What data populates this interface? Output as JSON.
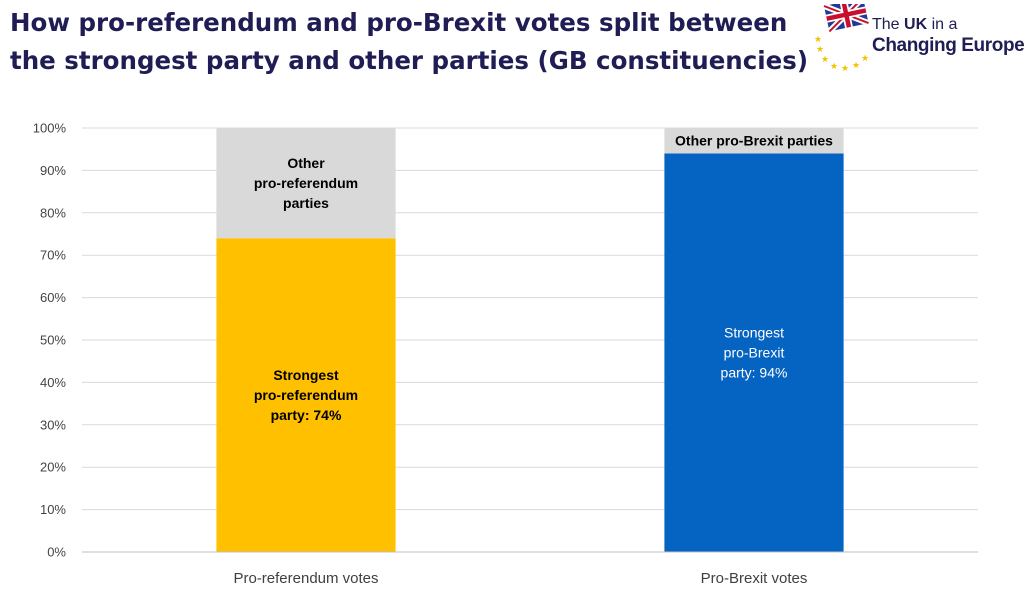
{
  "title_lines": [
    "How pro-referendum and pro-Brexit votes split between",
    "the strongest party and other parties (GB constituencies)"
  ],
  "logo": {
    "line1_prefix": "The ",
    "line1_bold": "UK",
    "line1_suffix": " in a",
    "line2": "Changing Europe",
    "icon": "union-jack-eu-stars-logo-icon"
  },
  "colors": {
    "title": "#1f1d54",
    "strongest_referendum": "#ffc000",
    "strongest_brexit": "#0563c1",
    "other_parties": "#d9d9d9",
    "gridline": "#d9d9d9"
  },
  "chart_data": {
    "type": "bar",
    "stacked": true,
    "categories": [
      "Pro-referendum votes",
      "Pro-Brexit votes"
    ],
    "series": [
      {
        "name": "Strongest party",
        "values": [
          74,
          94
        ]
      },
      {
        "name": "Other parties",
        "values": [
          26,
          6
        ]
      }
    ],
    "segment_labels": [
      [
        [
          "Strongest",
          "pro-referendum",
          "party: 74%"
        ],
        [
          "Other",
          "pro-referendum",
          "parties"
        ]
      ],
      [
        [
          "Strongest",
          "pro-Brexit",
          "party: 94%"
        ],
        [
          "Other pro-Brexit parties"
        ]
      ]
    ],
    "title": "How pro-referendum and pro-Brexit votes split between the strongest party and other parties (GB constituencies)",
    "xlabel": "",
    "ylabel": "",
    "ylim": [
      0,
      100
    ],
    "yticks": [
      "0%",
      "10%",
      "20%",
      "30%",
      "40%",
      "50%",
      "60%",
      "70%",
      "80%",
      "90%",
      "100%"
    ],
    "grid": true,
    "legend": "none"
  }
}
